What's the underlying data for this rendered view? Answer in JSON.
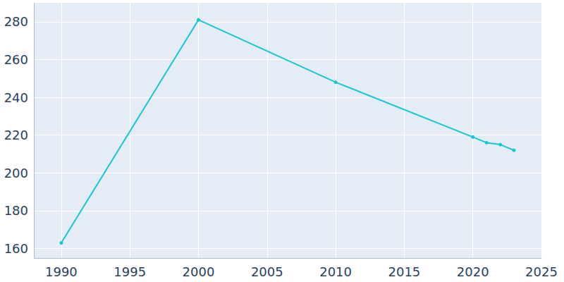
{
  "chart_data": {
    "type": "line",
    "x": [
      1990,
      2000,
      2010,
      2020,
      2021,
      2022,
      2023
    ],
    "values": [
      163,
      281,
      248,
      219,
      216,
      215,
      212
    ],
    "color": "#12c8d1",
    "marker": "circle",
    "xlim": [
      1988,
      2025
    ],
    "xticks": [
      1990,
      1995,
      2000,
      2005,
      2010,
      2015,
      2020,
      2025
    ],
    "ylim": [
      155,
      290
    ],
    "yticks": [
      160,
      180,
      200,
      220,
      240,
      260,
      280
    ],
    "grid": true
  }
}
